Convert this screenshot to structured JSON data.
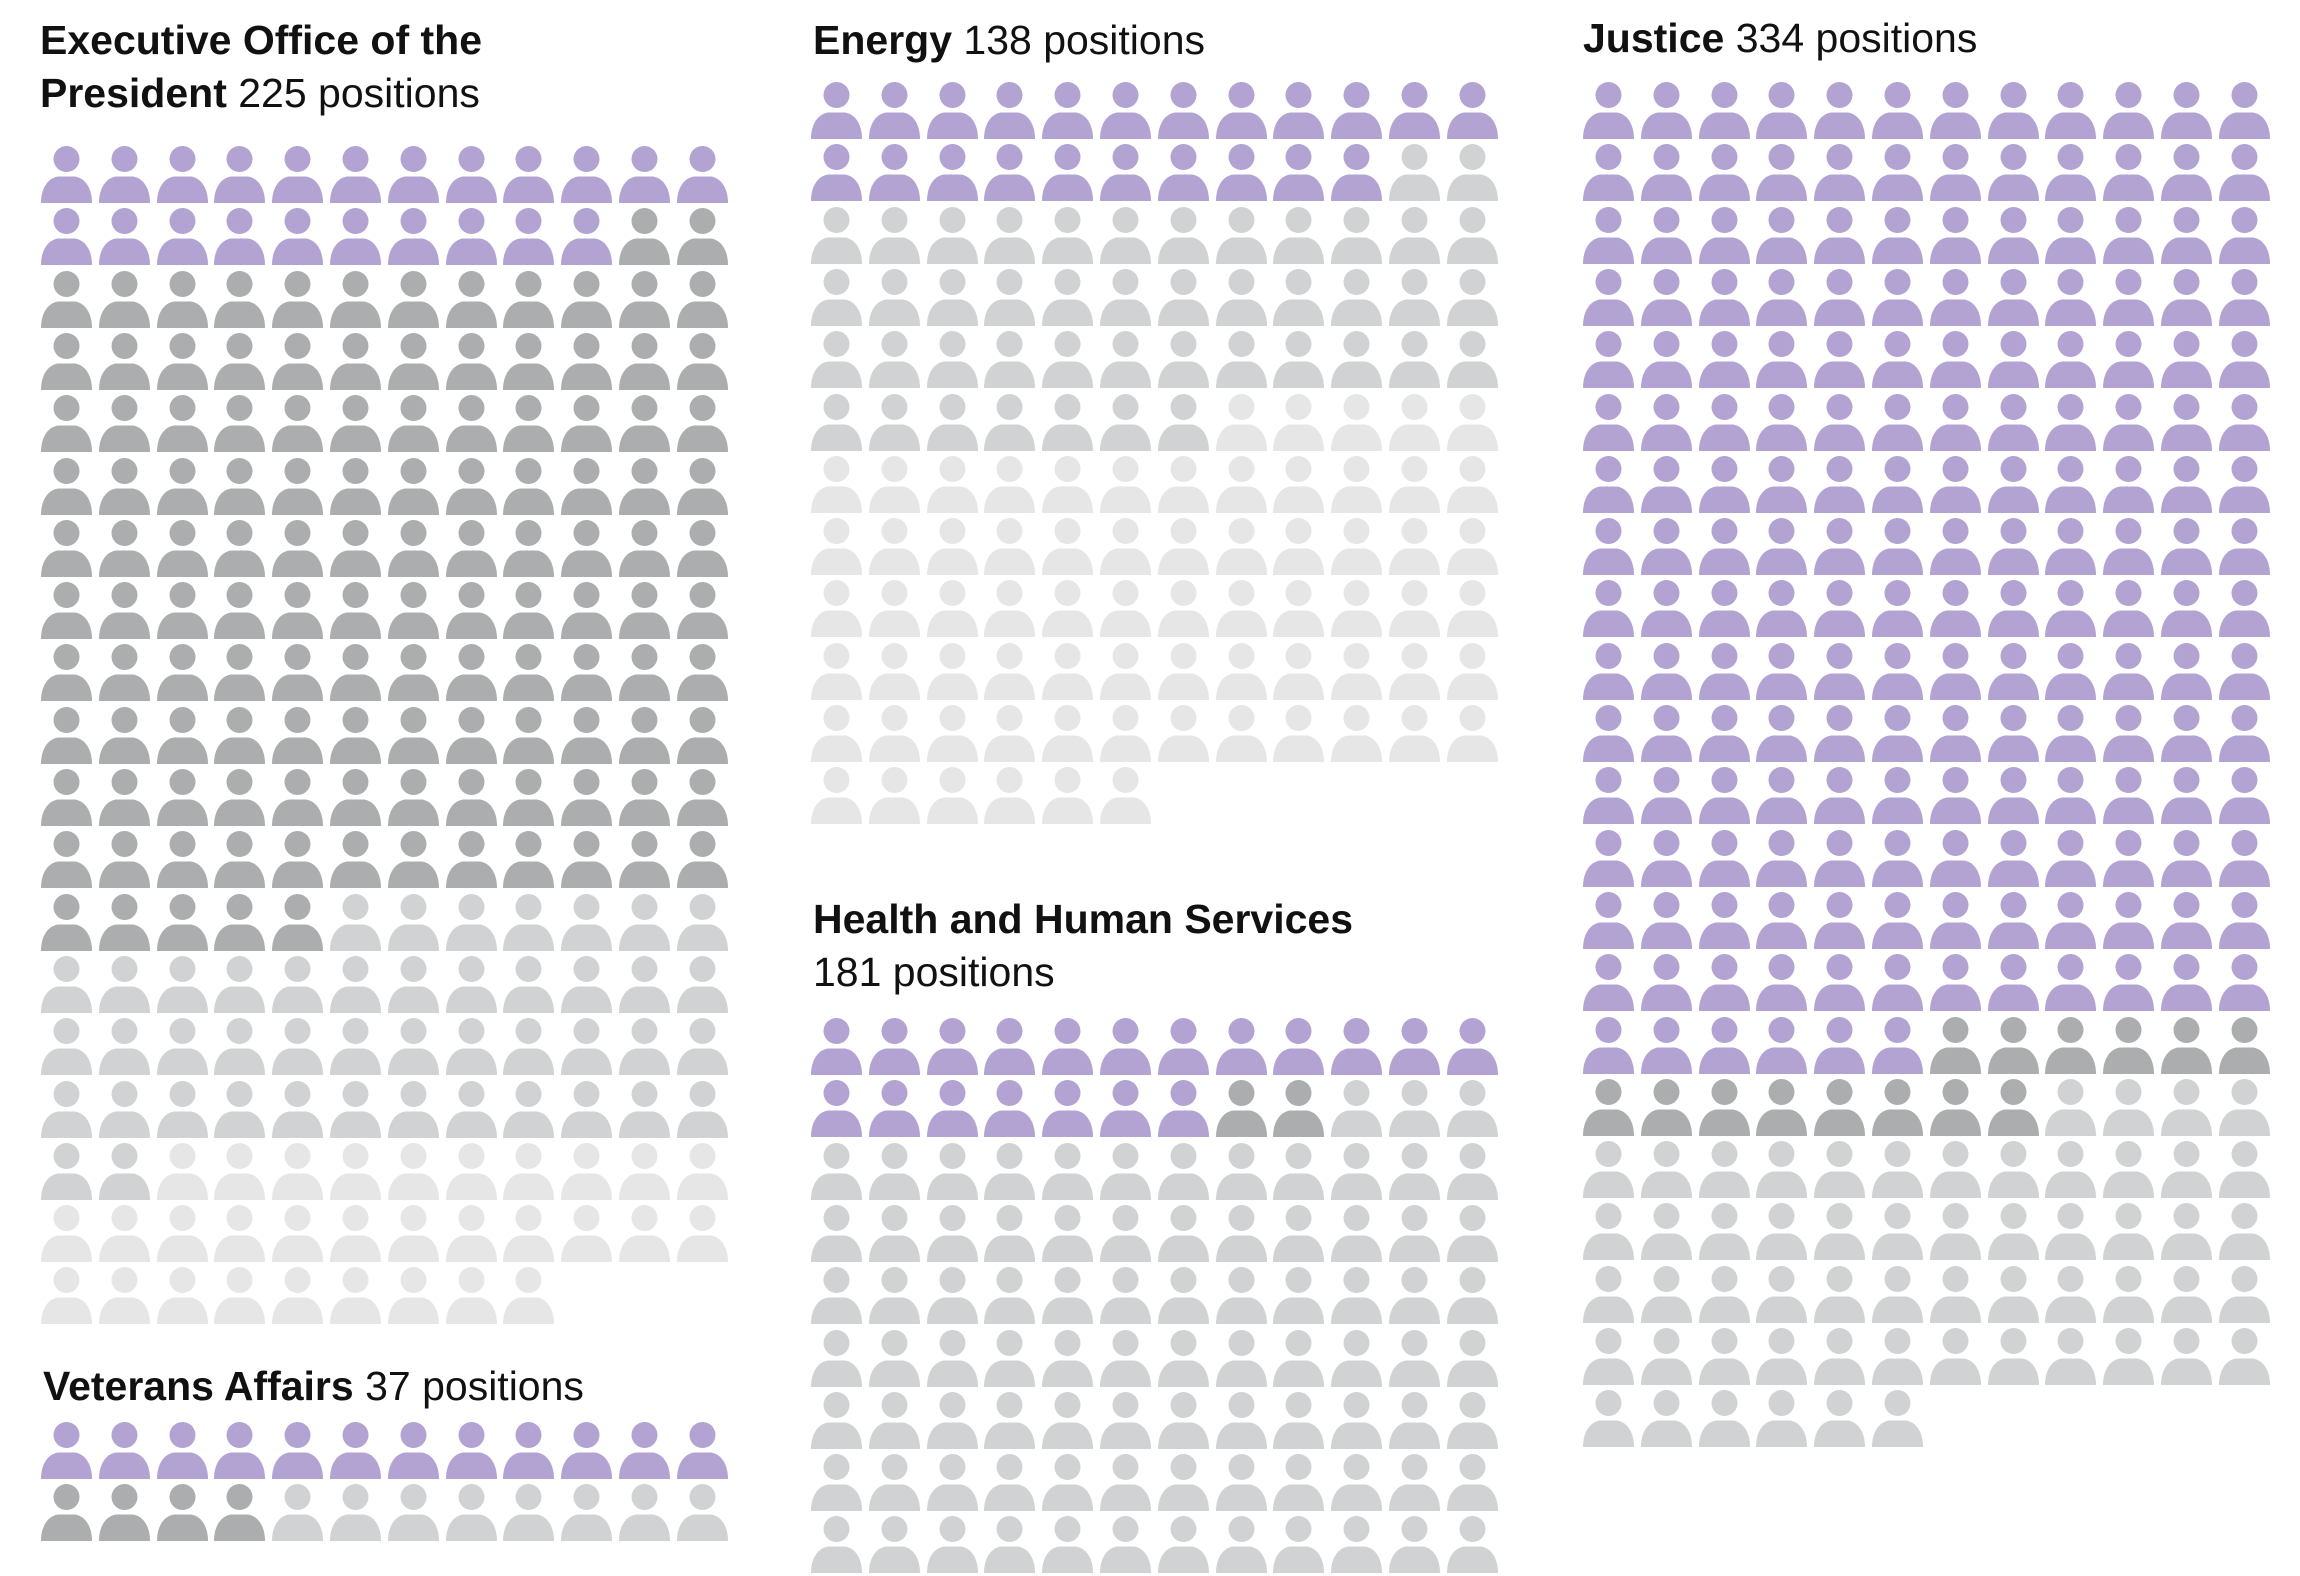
{
  "colors": {
    "purple": "#b3a3d3",
    "dark_gray": "#acadaf",
    "light_gray": "#d1d2d4",
    "lightest_gray": "#e6e6e7"
  },
  "icon": "person-icon",
  "chart_data": [
    {
      "type": "waffle",
      "name": "Executive Office of the",
      "name2": "President",
      "count_label": "225 positions",
      "total": 225,
      "columns": 12,
      "segments": [
        {
          "color": "purple",
          "count": 22
        },
        {
          "color": "dark_gray",
          "count": 127
        },
        {
          "color": "light_gray",
          "count": 45
        },
        {
          "color": "lightest_gray",
          "count": 31
        }
      ]
    },
    {
      "type": "waffle",
      "name": "Veterans Affairs",
      "count_label": "37 positions",
      "total": 37,
      "columns": 12,
      "segments": [
        {
          "color": "purple",
          "count": 12
        },
        {
          "color": "dark_gray",
          "count": 4
        },
        {
          "color": "light_gray",
          "count": 8
        }
      ]
    },
    {
      "type": "waffle",
      "name": "Energy",
      "count_label": "138 positions",
      "total": 138,
      "columns": 12,
      "segments": [
        {
          "color": "purple",
          "count": 22
        },
        {
          "color": "light_gray",
          "count": 45
        },
        {
          "color": "lightest_gray",
          "count": 71
        }
      ]
    },
    {
      "type": "waffle",
      "name": "Health and Human Services",
      "count_label": "181 positions",
      "total": 181,
      "columns": 12,
      "segments": [
        {
          "color": "purple",
          "count": 19
        },
        {
          "color": "dark_gray",
          "count": 2
        },
        {
          "color": "light_gray",
          "count": 87
        }
      ]
    },
    {
      "type": "waffle",
      "name": "Justice",
      "count_label": "334 positions",
      "total": 334,
      "columns": 12,
      "segments": [
        {
          "color": "purple",
          "count": 186
        },
        {
          "color": "dark_gray",
          "count": 14
        },
        {
          "color": "light_gray",
          "count": 58
        }
      ]
    }
  ]
}
